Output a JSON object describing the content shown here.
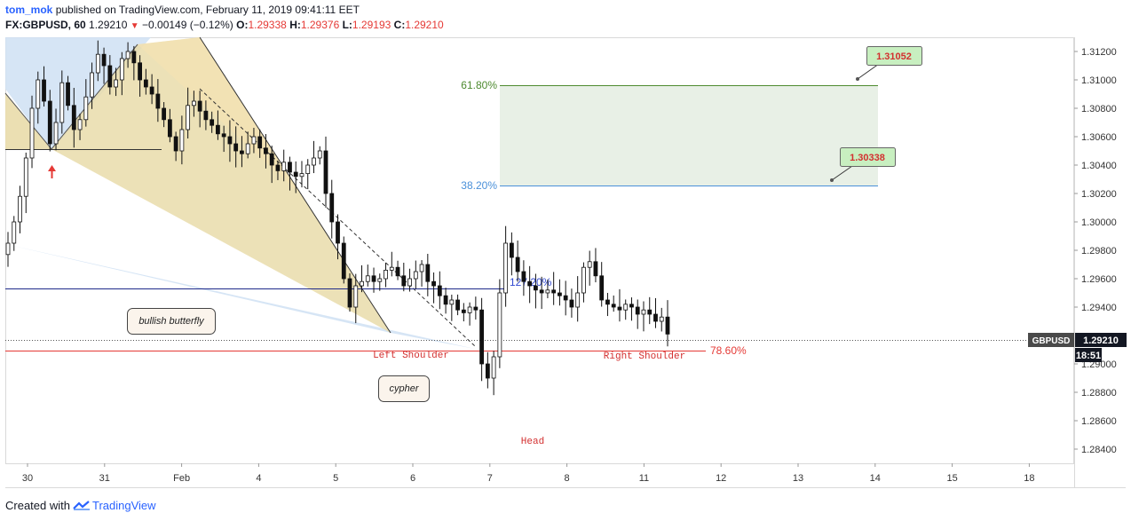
{
  "header": {
    "user": "tom_mok",
    "published": "published on TradingView.com, February 11, 2019 09:41:11 EET",
    "symbol": "FX:GBPUSD, 60",
    "last": "1.29210",
    "change": "−0.00149 (−0.12%)",
    "o_label": "O:",
    "o_value": "1.29338",
    "h_label": "H:",
    "h_value": "1.29376",
    "l_label": "L:",
    "l_value": "1.29193",
    "c_label": "C:",
    "c_value": "1.29210"
  },
  "footer": {
    "created_with": "Created with",
    "brand": "TradingView"
  },
  "colors": {
    "down": "#e53935",
    "link": "#2962ff",
    "grid": "#eeeeee",
    "fib_green": "#4d8a2f",
    "fib_blue": "#4a90d9",
    "red_line": "#e53935",
    "navy_line": "#1f2a8a",
    "pattern_tan": "#e9dcaa",
    "pattern_blue": "#cfe0f3"
  },
  "chart_data": {
    "type": "candlestick",
    "symbol": "GBPUSD",
    "timeframe": "60",
    "ylim": [
      1.283,
      1.313
    ],
    "y_ticks": [
      "1.31200",
      "1.31000",
      "1.30800",
      "1.30600",
      "1.30400",
      "1.30200",
      "1.30000",
      "1.29800",
      "1.29600",
      "1.29400",
      "1.29000",
      "1.28800",
      "1.28600",
      "1.28400"
    ],
    "x_ticks": [
      "30",
      "31",
      "Feb",
      "4",
      "5",
      "6",
      "7",
      "8",
      "11",
      "12",
      "13",
      "14",
      "15",
      "18"
    ],
    "last_price": {
      "label": "GBPUSD",
      "value": "1.29210",
      "countdown": "18:51"
    },
    "close_path": [
      1.2985,
      1.3,
      1.3018,
      1.3045,
      1.308,
      1.31,
      1.3085,
      1.3055,
      1.307,
      1.3098,
      1.3082,
      1.3065,
      1.3072,
      1.3088,
      1.3105,
      1.3118,
      1.311,
      1.3095,
      1.31,
      1.3115,
      1.312,
      1.3112,
      1.31,
      1.3095,
      1.309,
      1.308,
      1.3072,
      1.306,
      1.305,
      1.3065,
      1.3082,
      1.3085,
      1.3078,
      1.3072,
      1.3068,
      1.3062,
      1.306,
      1.3055,
      1.305,
      1.3048,
      1.3055,
      1.306,
      1.3052,
      1.3048,
      1.304,
      1.3036,
      1.3042,
      1.3035,
      1.3032,
      1.3034,
      1.304,
      1.3045,
      1.305,
      1.302,
      1.3,
      1.2985,
      1.296,
      1.294,
      1.2955,
      1.2958,
      1.2962,
      1.2958,
      1.296,
      1.2966,
      1.2968,
      1.2962,
      1.2955,
      1.296,
      1.2965,
      1.297,
      1.2958,
      1.2955,
      1.2948,
      1.2942,
      1.2945,
      1.2938,
      1.2936,
      1.294,
      1.2938,
      1.29,
      1.289,
      1.2905,
      1.295,
      1.2985,
      1.2975,
      1.2965,
      1.2958,
      1.2955,
      1.2952,
      1.295,
      1.2952,
      1.295,
      1.2948,
      1.2945,
      1.294,
      1.295,
      1.2968,
      1.2972,
      1.2962,
      1.2945,
      1.2942,
      1.294,
      1.2938,
      1.2942,
      1.294,
      1.2935,
      1.2938,
      1.2935,
      1.293,
      1.2933,
      1.2921
    ],
    "fib_levels": [
      {
        "label": "61.80%",
        "price": 1.31
      },
      {
        "label": "38.20%",
        "price": 1.3029
      },
      {
        "label": "127.20%",
        "price": 1.2957
      },
      {
        "label": "78.60%",
        "price": 1.2916
      }
    ],
    "price_callouts": [
      "1.31052",
      "1.30338"
    ],
    "annotations": [
      "bullish butterfly",
      "cypher",
      "Left Shoulder",
      "Head",
      "Right Shoulder"
    ]
  }
}
